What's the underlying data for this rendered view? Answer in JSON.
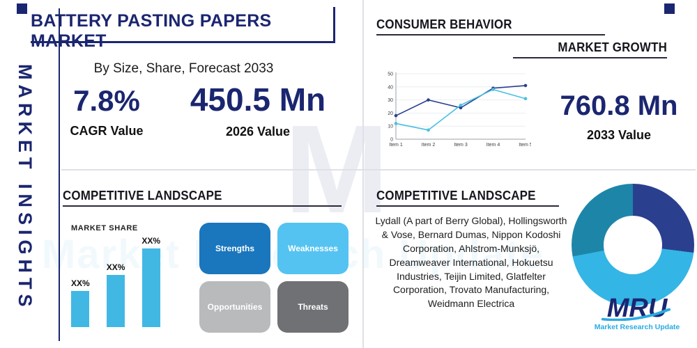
{
  "colors": {
    "navy": "#1b2670",
    "cyan": "#29abe2",
    "divider": "#dde1e6",
    "heading": "#16161e"
  },
  "left_rail": {
    "label": "MARKET INSIGHTS"
  },
  "header": {
    "title": "BATTERY PASTING PAPERS MARKET",
    "subtitle": "By Size, Share, Forecast 2033"
  },
  "stats": {
    "cagr": {
      "value": "7.8%",
      "label": "CAGR Value"
    },
    "v2026": {
      "value": "450.5 Mn",
      "label": "2026 Value"
    },
    "v2033": {
      "value": "760.8 Mn",
      "label": "2033 Value"
    }
  },
  "sections": {
    "consumer_behavior": "CONSUMER BEHAVIOR",
    "market_growth": "MARKET GROWTH",
    "competitive_left": "COMPETITIVE LANDSCAPE",
    "competitive_right": "COMPETITIVE LANDSCAPE",
    "market_share": "MARKET SHARE"
  },
  "swot": [
    {
      "label": "Strengths",
      "color": "#1a76bd"
    },
    {
      "label": "Weaknesses",
      "color": "#55c3f1"
    },
    {
      "label": "Opportunities",
      "color": "#b9babc"
    },
    {
      "label": "Threats",
      "color": "#707175"
    }
  ],
  "companies": "Lydall (A part of Berry Global), Hollingsworth & Vose, Bernard Dumas, Nippon Kodoshi Corporation, Ahlstrom-Munksjö, Dreamweaver International, Hokuetsu Industries, Teijin Limited, Glatfelter Corporation, Trovato Manufacturing, Weidmann Electrica",
  "logo": {
    "name": "MRU",
    "tagline": "Market Research Update"
  },
  "watermark": {
    "monogram": "M",
    "text": "Market Research Update"
  },
  "chart_data": [
    {
      "id": "market-growth",
      "type": "line",
      "title": "MARKET GROWTH",
      "x": [
        "Item 1",
        "Item 2",
        "Item 3",
        "Item 4",
        "Item 5"
      ],
      "ylim": [
        0,
        50
      ],
      "yticks": [
        0,
        10,
        20,
        30,
        40,
        50
      ],
      "grid": true,
      "legend": false,
      "series": [
        {
          "name": "series-dark-blue",
          "color": "#2b3f8f",
          "values": [
            18,
            30,
            24,
            39,
            41
          ]
        },
        {
          "name": "series-light-blue",
          "color": "#49c0e0",
          "values": [
            12,
            7,
            26,
            38,
            31
          ]
        }
      ]
    },
    {
      "id": "market-share",
      "type": "bar",
      "title": "MARKET SHARE",
      "labels": [
        "XX%",
        "XX%",
        "XX%"
      ],
      "values": [
        52,
        75,
        113
      ],
      "color": "#41b8e4"
    },
    {
      "id": "company-share-donut",
      "type": "pie",
      "donut": true,
      "segments": [
        {
          "name": "segment-navy",
          "color": "#2b3f8f",
          "value": 27
        },
        {
          "name": "segment-cyan",
          "color": "#33b5e5",
          "value": 45
        },
        {
          "name": "segment-teal",
          "color": "#1d86a8",
          "value": 28
        }
      ]
    }
  ]
}
